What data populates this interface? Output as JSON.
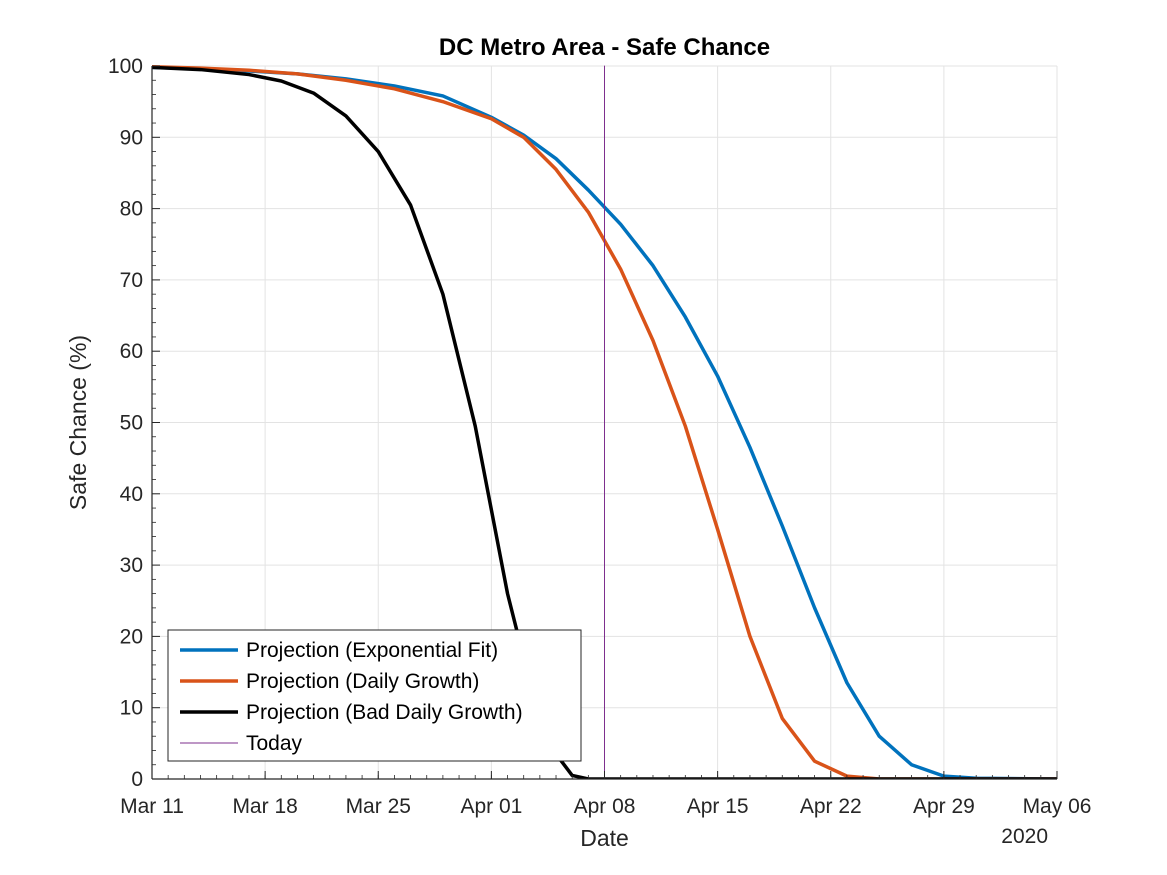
{
  "chart_data": {
    "type": "line",
    "title": "DC Metro Area - Safe Chance",
    "xlabel": "Date",
    "ylabel": "Safe Chance (%)",
    "x_secondary_label": "2020",
    "xlim": [
      "2020-03-11",
      "2020-05-06"
    ],
    "ylim": [
      0,
      100
    ],
    "x_ticks": [
      {
        "date": "2020-03-11",
        "label": "Mar 11"
      },
      {
        "date": "2020-03-18",
        "label": "Mar 18"
      },
      {
        "date": "2020-03-25",
        "label": "Mar 25"
      },
      {
        "date": "2020-04-01",
        "label": "Apr 01"
      },
      {
        "date": "2020-04-08",
        "label": "Apr 08"
      },
      {
        "date": "2020-04-15",
        "label": "Apr 15"
      },
      {
        "date": "2020-04-22",
        "label": "Apr 22"
      },
      {
        "date": "2020-04-29",
        "label": "Apr 29"
      },
      {
        "date": "2020-05-06",
        "label": "May 06"
      }
    ],
    "y_ticks": [
      0,
      10,
      20,
      30,
      40,
      50,
      60,
      70,
      80,
      90,
      100
    ],
    "grid": true,
    "legend_position": "bottom-left",
    "series": [
      {
        "name": "Projection (Exponential Fit)",
        "color": "#0072BD",
        "style": "thick",
        "points": [
          [
            "2020-03-11",
            99.8
          ],
          [
            "2020-03-14",
            99.6
          ],
          [
            "2020-03-17",
            99.3
          ],
          [
            "2020-03-20",
            98.9
          ],
          [
            "2020-03-23",
            98.2
          ],
          [
            "2020-03-26",
            97.2
          ],
          [
            "2020-03-29",
            95.8
          ],
          [
            "2020-04-01",
            92.8
          ],
          [
            "2020-04-03",
            90.3
          ],
          [
            "2020-04-05",
            87.0
          ],
          [
            "2020-04-07",
            82.6
          ],
          [
            "2020-04-09",
            77.8
          ],
          [
            "2020-04-11",
            72.0
          ],
          [
            "2020-04-13",
            64.8
          ],
          [
            "2020-04-15",
            56.5
          ],
          [
            "2020-04-17",
            46.5
          ],
          [
            "2020-04-19",
            35.5
          ],
          [
            "2020-04-21",
            24.0
          ],
          [
            "2020-04-23",
            13.5
          ],
          [
            "2020-04-25",
            6.0
          ],
          [
            "2020-04-27",
            2.0
          ],
          [
            "2020-04-29",
            0.4
          ],
          [
            "2020-05-01",
            0.1
          ],
          [
            "2020-05-06",
            0.0
          ]
        ]
      },
      {
        "name": "Projection (Daily Growth)",
        "color": "#D95319",
        "style": "thick",
        "points": [
          [
            "2020-03-11",
            99.9
          ],
          [
            "2020-03-14",
            99.7
          ],
          [
            "2020-03-17",
            99.4
          ],
          [
            "2020-03-20",
            98.9
          ],
          [
            "2020-03-23",
            98.0
          ],
          [
            "2020-03-26",
            96.8
          ],
          [
            "2020-03-29",
            95.0
          ],
          [
            "2020-04-01",
            92.6
          ],
          [
            "2020-04-03",
            90.0
          ],
          [
            "2020-04-05",
            85.5
          ],
          [
            "2020-04-07",
            79.5
          ],
          [
            "2020-04-09",
            71.5
          ],
          [
            "2020-04-11",
            61.5
          ],
          [
            "2020-04-13",
            49.5
          ],
          [
            "2020-04-15",
            35.0
          ],
          [
            "2020-04-17",
            20.0
          ],
          [
            "2020-04-19",
            8.5
          ],
          [
            "2020-04-21",
            2.5
          ],
          [
            "2020-04-23",
            0.4
          ],
          [
            "2020-04-25",
            0.0
          ],
          [
            "2020-05-06",
            0.0
          ]
        ]
      },
      {
        "name": "Projection (Bad Daily Growth)",
        "color": "#000000",
        "style": "thick",
        "points": [
          [
            "2020-03-11",
            99.8
          ],
          [
            "2020-03-14",
            99.5
          ],
          [
            "2020-03-17",
            98.8
          ],
          [
            "2020-03-19",
            97.9
          ],
          [
            "2020-03-21",
            96.2
          ],
          [
            "2020-03-23",
            93.0
          ],
          [
            "2020-03-25",
            88.0
          ],
          [
            "2020-03-27",
            80.5
          ],
          [
            "2020-03-29",
            68.0
          ],
          [
            "2020-03-31",
            49.5
          ],
          [
            "2020-04-02",
            26.0
          ],
          [
            "2020-04-03",
            17.0
          ],
          [
            "2020-04-04",
            9.5
          ],
          [
            "2020-04-05",
            3.5
          ],
          [
            "2020-04-06",
            0.5
          ],
          [
            "2020-04-07",
            0.0
          ],
          [
            "2020-05-06",
            0.0
          ]
        ]
      },
      {
        "name": "Today",
        "color": "#7E2F8E",
        "style": "thin",
        "points": [
          [
            "2020-04-08",
            0
          ],
          [
            "2020-04-08",
            100
          ]
        ]
      }
    ]
  }
}
